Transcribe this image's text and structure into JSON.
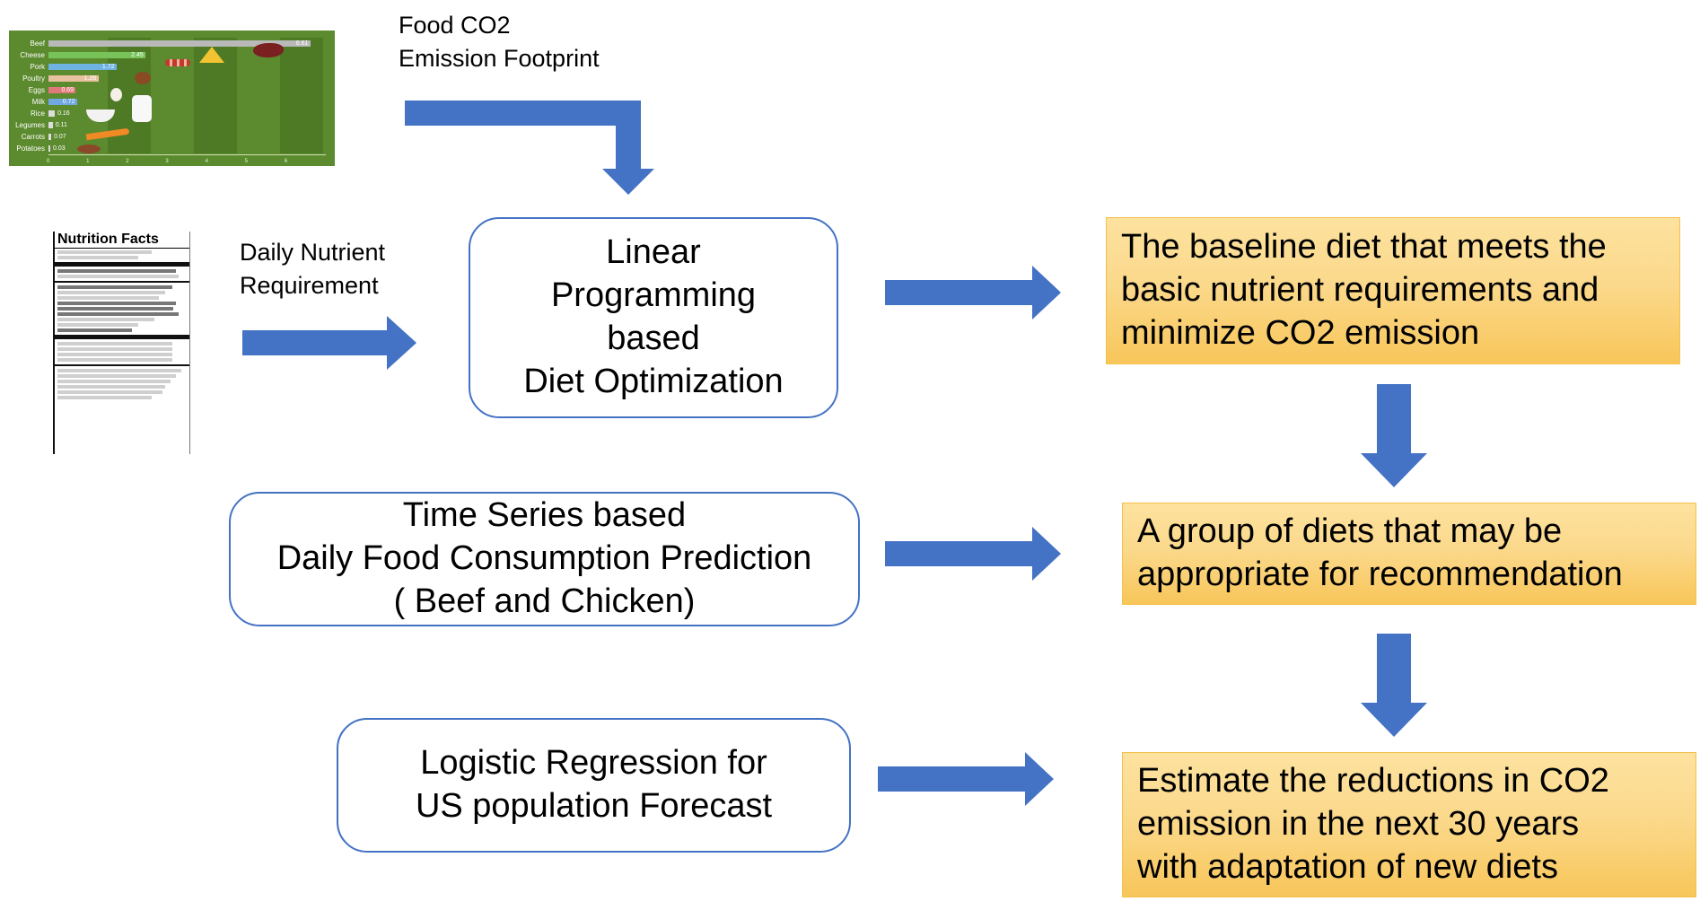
{
  "labels": {
    "food_co2": "Food CO2\nEmission Footprint",
    "daily_nutrient": "Daily Nutrient\nRequirement"
  },
  "boxes": {
    "linear_programming": "Linear\nProgramming\nbased\nDiet Optimization",
    "time_series": "Time Series based\nDaily Food Consumption Prediction\n( Beef and Chicken)",
    "logistic_regression": "Logistic Regression for\nUS population Forecast"
  },
  "results": {
    "baseline_diet": "The baseline diet that meets the\nbasic nutrient requirements and\nminimize CO2 emission",
    "group_of_diets": "A group of diets that may be\nappropriate for recommendation",
    "estimate_reductions": "Estimate the reductions in CO2\nemission in the next 30 years\nwith adaptation of new diets"
  },
  "colors": {
    "arrow": "#4472c4",
    "box_border": "#4472c4",
    "result_fill": "#fbd98c",
    "result_border": "#f5c04a"
  },
  "chart_data": {
    "type": "bar",
    "categories": [
      "Beef",
      "Cheese",
      "Pork",
      "Poultry",
      "Eggs",
      "Milk",
      "Rice",
      "Legumes",
      "Carrots",
      "Potatoes"
    ],
    "values": [
      6.61,
      2.45,
      1.72,
      1.26,
      0.69,
      0.72,
      0.16,
      0.11,
      0.07,
      0.03
    ],
    "series_colors": [
      "#b9b9b9",
      "#77c35a",
      "#6fb3e3",
      "#e8c2a0",
      "#e07a7a",
      "#6fa8e3",
      "#dddddd",
      "#dddddd",
      "#dddddd",
      "#dddddd"
    ],
    "xlim": [
      0,
      7
    ],
    "x_ticks": [
      "0",
      "1",
      "2",
      "3",
      "4",
      "5",
      "6"
    ],
    "orientation": "horizontal"
  },
  "nutrition_facts": {
    "title": "Nutrition Facts"
  }
}
